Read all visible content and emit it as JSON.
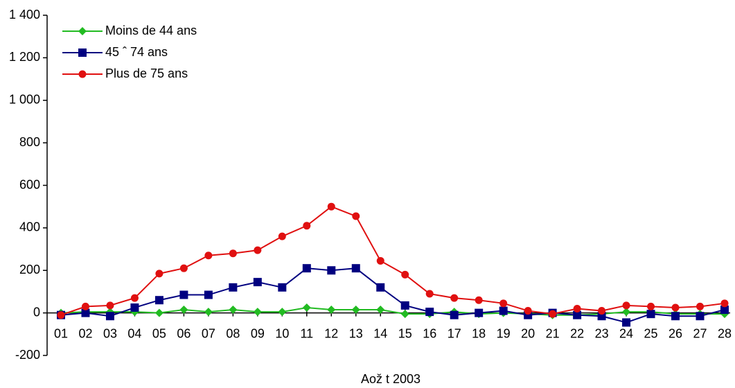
{
  "chart_data": {
    "type": "line",
    "x_label": "Aož t 2003",
    "categories": [
      "01",
      "02",
      "03",
      "04",
      "05",
      "06",
      "07",
      "08",
      "09",
      "10",
      "11",
      "12",
      "13",
      "14",
      "15",
      "16",
      "17",
      "18",
      "19",
      "20",
      "21",
      "22",
      "23",
      "24",
      "25",
      "26",
      "27",
      "28"
    ],
    "series": [
      {
        "name": "Moins de 44 ans",
        "color": "#22bb22",
        "marker": "diamond",
        "values": [
          0,
          5,
          5,
          5,
          0,
          15,
          5,
          15,
          5,
          5,
          25,
          15,
          15,
          15,
          -5,
          -5,
          5,
          -5,
          0,
          -5,
          -10,
          -10,
          -5,
          5,
          5,
          -5,
          -5,
          -5
        ]
      },
      {
        "name": "45 ˆ 74 ans",
        "color": "#000080",
        "marker": "square",
        "values": [
          -10,
          0,
          -15,
          25,
          60,
          85,
          85,
          120,
          145,
          120,
          210,
          200,
          210,
          120,
          35,
          5,
          -10,
          0,
          10,
          -10,
          0,
          -10,
          -15,
          -45,
          -5,
          -15,
          -15,
          15
        ]
      },
      {
        "name": "Plus de 75 ans",
        "color": "#e01010",
        "marker": "circle",
        "values": [
          -10,
          30,
          35,
          70,
          185,
          210,
          270,
          280,
          295,
          360,
          410,
          500,
          455,
          245,
          180,
          90,
          70,
          60,
          45,
          10,
          -5,
          20,
          10,
          35,
          30,
          25,
          30,
          45
        ]
      }
    ],
    "ylim": [
      -200,
      1400
    ],
    "yticks": [
      -200,
      0,
      200,
      400,
      600,
      800,
      {
        "value": 1000,
        "label": "1 000"
      },
      {
        "value": 1200,
        "label": "1 200"
      },
      {
        "value": 1400,
        "label": "1 400"
      }
    ],
    "legend": "upper left"
  }
}
